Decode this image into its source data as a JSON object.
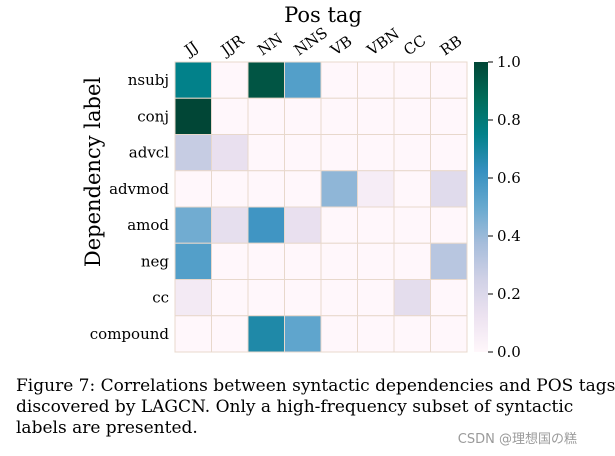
{
  "chart_data": {
    "type": "heatmap",
    "title": "Pos tag",
    "xlabel": "Pos tag",
    "ylabel": "Dependency label",
    "x_categories": [
      "JJ",
      "JJR",
      "NN",
      "NNS",
      "VB",
      "VBN",
      "CC",
      "RB"
    ],
    "y_categories": [
      "nsubj",
      "conj",
      "advcl",
      "advmod",
      "amod",
      "neg",
      "cc",
      "compound"
    ],
    "values": [
      [
        0.75,
        0.0,
        0.95,
        0.55,
        0.0,
        0.0,
        0.0,
        0.0
      ],
      [
        1.0,
        0.0,
        0.0,
        0.0,
        0.0,
        0.0,
        0.0,
        0.0
      ],
      [
        0.28,
        0.14,
        0.0,
        0.0,
        0.0,
        0.0,
        0.0,
        0.0
      ],
      [
        0.0,
        0.0,
        0.0,
        0.0,
        0.42,
        0.06,
        0.0,
        0.18
      ],
      [
        0.48,
        0.15,
        0.6,
        0.14,
        0.0,
        0.0,
        0.0,
        0.0
      ],
      [
        0.55,
        0.0,
        0.0,
        0.0,
        0.0,
        0.0,
        0.0,
        0.32
      ],
      [
        0.08,
        0.0,
        0.0,
        0.0,
        0.0,
        0.0,
        0.16,
        0.0
      ],
      [
        0.0,
        0.0,
        0.68,
        0.52,
        0.0,
        0.0,
        0.0,
        0.0
      ]
    ],
    "colorbar": {
      "range": [
        0.0,
        1.0
      ],
      "ticks": [
        "0.0",
        "0.2",
        "0.4",
        "0.6",
        "0.8",
        "1.0"
      ],
      "colormap": "PuBuGn",
      "stops": [
        "#fff7fb",
        "#ece2f0",
        "#d0d1e6",
        "#a6bddb",
        "#67a9cf",
        "#3690c0",
        "#02818a",
        "#016c59",
        "#014636"
      ]
    },
    "grid": true,
    "grid_color": "#e8d8cc"
  },
  "caption": {
    "lines": [
      "Figure 7: Correlations between syntactic dependencies and POS tags",
      "discovered by LAGCN. Only a high-frequency subset of syntactic",
      "labels are presented."
    ]
  },
  "watermark": "CSDN @理想国の糕"
}
